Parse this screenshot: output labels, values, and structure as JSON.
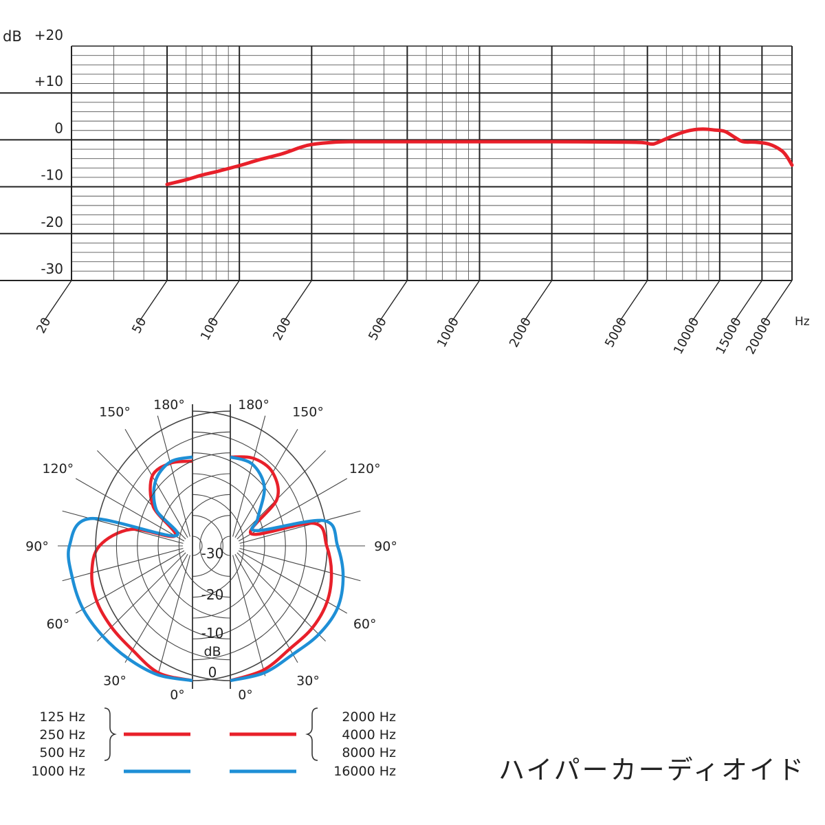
{
  "chart_data": [
    {
      "type": "line",
      "title": "",
      "xlabel": "",
      "ylabel": "",
      "x_scale": "log",
      "xlim": [
        20,
        20000
      ],
      "ylim": [
        -30,
        20
      ],
      "y_unit": "dB",
      "x_unit": "Hz",
      "grid": true,
      "x_tick_labels": [
        20,
        50,
        100,
        200,
        500,
        1000,
        2000,
        5000,
        10000,
        15000,
        20000
      ],
      "y_tick_labels": [
        "+20",
        "+10",
        "0",
        "-10",
        "-20",
        "-30"
      ],
      "y_tick_values": [
        20,
        10,
        0,
        -10,
        -20,
        -30
      ],
      "series": [
        {
          "color": "#e8202a",
          "x": [
            50,
            60,
            70,
            80,
            100,
            120,
            150,
            180,
            200,
            250,
            300,
            500,
            1000,
            2000,
            4000,
            4800,
            5200,
            5500,
            6500,
            7500,
            8500,
            9500,
            10500,
            11500,
            12500,
            14000,
            16000,
            18000,
            19000,
            20000
          ],
          "y": [
            -9.5,
            -8.5,
            -7.5,
            -6.8,
            -5.5,
            -4.3,
            -3,
            -1.6,
            -1,
            -0.5,
            -0.4,
            -0.4,
            -0.4,
            -0.4,
            -0.5,
            -0.6,
            -0.9,
            -0.6,
            1,
            2,
            2.3,
            2.1,
            1.8,
            0.6,
            -0.4,
            -0.5,
            -0.9,
            -2.2,
            -3.5,
            -5.4
          ]
        }
      ]
    },
    {
      "type": "polar",
      "title": "",
      "r_unit": "dB",
      "rlim": [
        -30,
        0
      ],
      "r_tick_labels": [
        "-30",
        "-20",
        "-10",
        "0"
      ],
      "angle_tick_labels": [
        "0°",
        "30°",
        "60°",
        "90°",
        "120°",
        "150°",
        "180°"
      ],
      "angles_deg": [
        0,
        15,
        30,
        45,
        60,
        75,
        90,
        105,
        120,
        135,
        150,
        165,
        180
      ],
      "series": [
        {
          "label_group": "low",
          "frequencies": [
            "125 Hz",
            "250 Hz",
            "500 Hz"
          ],
          "color": "#e8202a",
          "db": [
            0,
            -0.8,
            -3.5,
            -4.8,
            -5.8,
            -7.3,
            -10,
            -17,
            -27.5,
            -19,
            -13,
            -11.8,
            -12
          ]
        },
        {
          "label_group": "low",
          "frequencies": [
            "1000 Hz"
          ],
          "color": "#1e8fd6",
          "db": [
            0,
            -0.3,
            -1.2,
            -1.8,
            -2,
            -2.5,
            -2.8,
            -7,
            -27.5,
            -20,
            -14.5,
            -11.5,
            -11
          ]
        },
        {
          "label_group": "high",
          "frequencies": [
            "2000 Hz",
            "4000 Hz",
            "8000 Hz"
          ],
          "color": "#e8202a",
          "db": [
            0,
            -1.5,
            -3.8,
            -4.5,
            -5.5,
            -7.2,
            -9.2,
            -11.5,
            -26.5,
            -16.5,
            -12,
            -10.6,
            -11
          ]
        },
        {
          "label_group": "high",
          "frequencies": [
            "16000 Hz"
          ],
          "color": "#1e8fd6",
          "db": [
            0,
            -0.8,
            -2.3,
            -2.3,
            -2.6,
            -4.3,
            -6.6,
            -9,
            -25,
            -23,
            -16,
            -12,
            -11
          ]
        }
      ]
    }
  ],
  "legend": {
    "left": {
      "red_labels": [
        "125 Hz",
        "250 Hz",
        "500 Hz"
      ],
      "blue_labels": [
        "1000 Hz"
      ]
    },
    "right": {
      "red_labels": [
        "2000 Hz",
        "4000 Hz",
        "8000 Hz"
      ],
      "blue_labels": [
        "16000 Hz"
      ]
    }
  },
  "caption": "ハイパーカーディオイド",
  "colors": {
    "low_freq": "#e8202a",
    "high_freq": "#1e8fd6",
    "grid": "#222222"
  }
}
